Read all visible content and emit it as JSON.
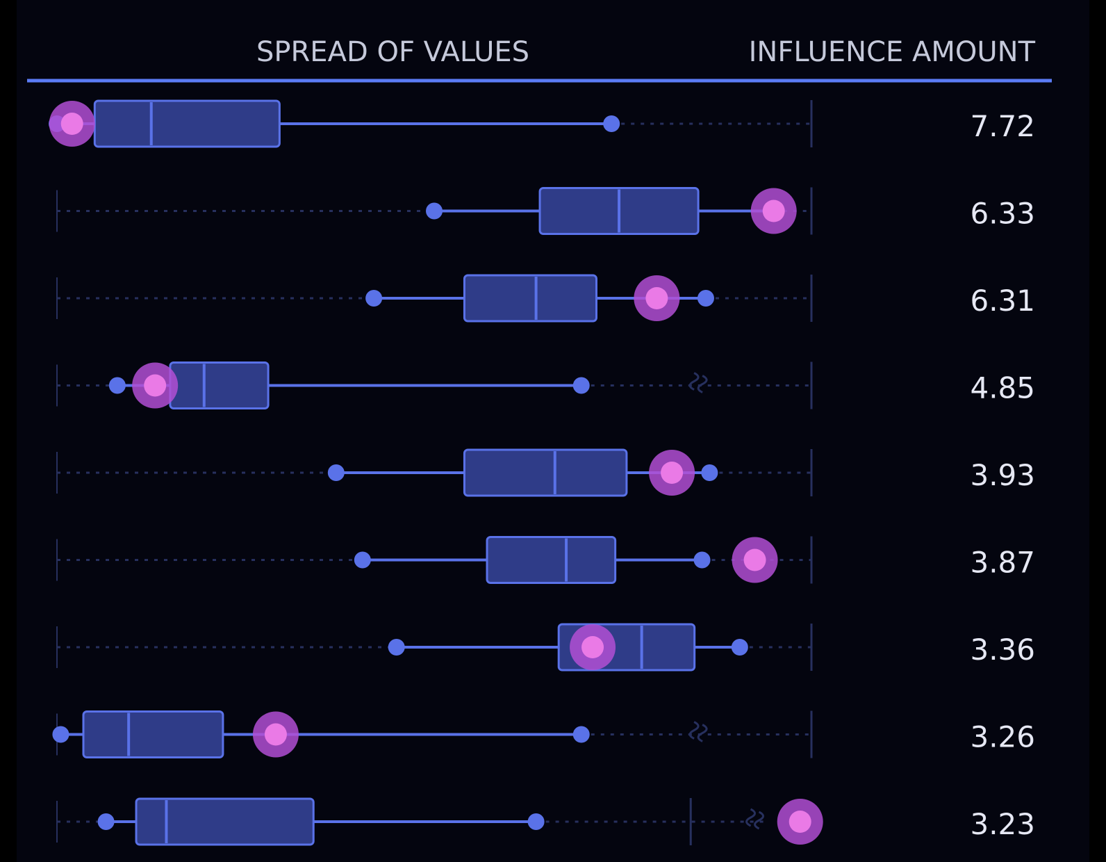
{
  "header": {
    "spread_label": "SPREAD OF VALUES",
    "influence_label": "INFLUENCE AMOUNT"
  },
  "colors": {
    "background": "#04050f",
    "accent_line": "#5b7cf5",
    "box_fill": "#2f3c88",
    "box_stroke": "#5a72e8",
    "whisker": "#5a72e8",
    "marker": "#b14fd3",
    "marker_core": "#ea7ae6",
    "guide": "#27305e",
    "value_text": "#e6e8f4"
  },
  "chart_data": {
    "type": "box",
    "title": "",
    "xlim": [
      0,
      100
    ],
    "axis_visible": false,
    "guide_style": "dotted",
    "rows": [
      {
        "min": 0,
        "q1": 5,
        "median": 12.5,
        "q3": 29.5,
        "max": 73.5,
        "marker": 2,
        "influence": "7.72",
        "axis_max": 100
      },
      {
        "min": 50,
        "q1": 64,
        "median": 74.5,
        "q3": 85,
        "max": 95,
        "marker": 95,
        "influence": "6.33",
        "axis_max": 100
      },
      {
        "min": 42,
        "q1": 54,
        "median": 63.5,
        "q3": 71.5,
        "max": 86,
        "marker": 79.5,
        "influence": "6.31",
        "axis_max": 100
      },
      {
        "min": 8,
        "q1": 15,
        "median": 19.5,
        "q3": 28,
        "max": 69.5,
        "marker": 13,
        "influence": "4.85",
        "axis_max": 100,
        "axis_break": 85
      },
      {
        "min": 37,
        "q1": 54,
        "median": 66,
        "q3": 75.5,
        "max": 86.5,
        "marker": 81.5,
        "influence": "3.93",
        "axis_max": 100
      },
      {
        "min": 40.5,
        "q1": 57,
        "median": 67.5,
        "q3": 74,
        "max": 85.5,
        "marker": 92.5,
        "influence": "3.87",
        "axis_max": 100
      },
      {
        "min": 45,
        "q1": 66.5,
        "median": 77.5,
        "q3": 84.5,
        "max": 90.5,
        "marker": 71,
        "influence": "3.36",
        "axis_max": 100
      },
      {
        "min": 0.5,
        "q1": 3.5,
        "median": 9.5,
        "q3": 22,
        "max": 69.5,
        "marker": 29,
        "influence": "3.26",
        "axis_max": 100,
        "axis_break": 85
      },
      {
        "min": 6.5,
        "q1": 10.5,
        "median": 14.5,
        "q3": 34,
        "max": 63.5,
        "marker": 98.5,
        "influence": "3.23",
        "axis_max": 84,
        "axis_break": 92.5
      }
    ]
  }
}
